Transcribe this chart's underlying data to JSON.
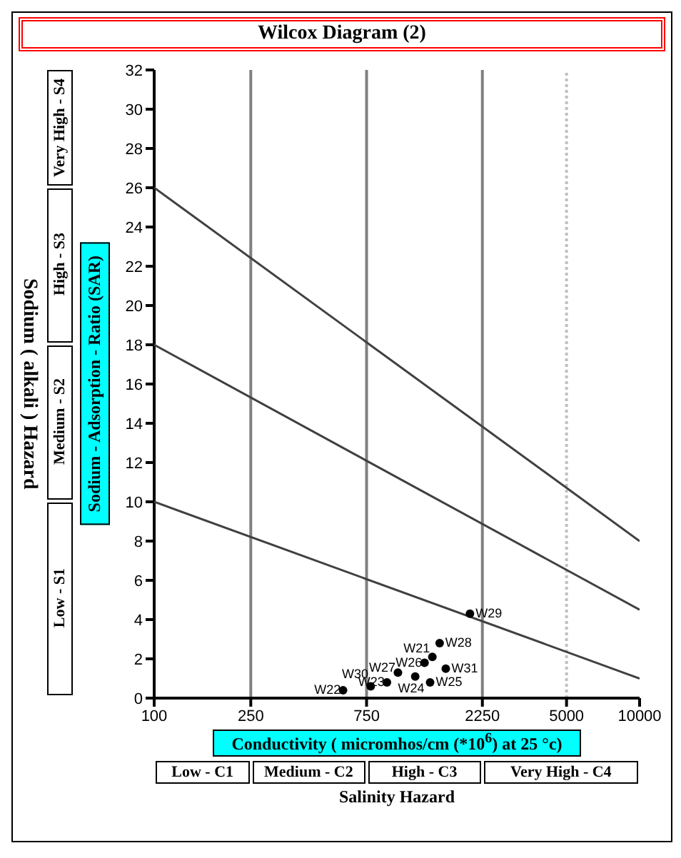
{
  "chart_data": {
    "type": "scatter",
    "title": "Wilcox Diagram (2)",
    "xlabel": "Conductivity ( micromhos/cm (*10$^{6}$) at 25 °c)",
    "ylabel": "Sodium - Adsorption - Ratio (SAR)",
    "annotations": [
      "Low - C1",
      "Medium - C2",
      "High - C3",
      "Very High - C4",
      "Salinity Hazard",
      "Low - S1",
      "Medium - S2",
      "High - S3",
      "Very High - S4",
      "Sodium ( alkali ) Hazard"
    ],
    "log": "x",
    "xlim": [
      100,
      10000
    ],
    "xticks": [
      100,
      250,
      750,
      2250,
      5000,
      10000
    ],
    "ylim": [
      0,
      32
    ],
    "yticks": [
      0,
      2,
      4,
      6,
      8,
      10,
      12,
      14,
      16,
      18,
      20,
      22,
      24,
      26,
      28,
      30,
      32
    ],
    "grid": false,
    "legend": false,
    "marker": "circle",
    "ref_lines": [
      {
        "axis": "x",
        "value": 250,
        "color": "#808080"
      },
      {
        "axis": "x",
        "value": 750,
        "color": "#808080"
      },
      {
        "axis": "x",
        "value": 2250,
        "color": "#808080"
      },
      {
        "axis": "x",
        "value": 5000,
        "color": "#c0c0c0",
        "line_style": "dotted"
      }
    ],
    "series": [
      {
        "type": "line",
        "color": "#404040",
        "marker": "none",
        "x": [
          100,
          10000
        ],
        "values": [
          10,
          1
        ]
      },
      {
        "type": "line",
        "color": "#404040",
        "marker": "none",
        "x": [
          100,
          10000
        ],
        "values": [
          18,
          4.5
        ]
      },
      {
        "type": "line",
        "color": "#404040",
        "marker": "none",
        "x": [
          100,
          10000
        ],
        "values": [
          26,
          8
        ]
      },
      {
        "name": "W22",
        "color": "#000000",
        "x": [
          600
        ],
        "values": [
          0.4
        ]
      },
      {
        "name": "W30",
        "color": "#000000",
        "x": [
          780
        ],
        "values": [
          0.6
        ]
      },
      {
        "name": "W23",
        "color": "#000000",
        "x": [
          910
        ],
        "values": [
          0.8
        ]
      },
      {
        "name": "W27",
        "color": "#000000",
        "x": [
          1010
        ],
        "values": [
          1.3
        ]
      },
      {
        "name": "W24",
        "color": "#000000",
        "x": [
          1190
        ],
        "values": [
          1.1
        ]
      },
      {
        "name": "W26",
        "color": "#000000",
        "x": [
          1300
        ],
        "values": [
          1.8
        ]
      },
      {
        "name": "W25",
        "color": "#000000",
        "x": [
          1370
        ],
        "values": [
          0.8
        ]
      },
      {
        "name": "W21",
        "color": "#000000",
        "x": [
          1400
        ],
        "values": [
          2.1
        ]
      },
      {
        "name": "W28",
        "color": "#000000",
        "x": [
          1500
        ],
        "values": [
          2.8
        ]
      },
      {
        "name": "W31",
        "color": "#000000",
        "x": [
          1590
        ],
        "values": [
          1.5
        ]
      },
      {
        "name": "W29",
        "color": "#000000",
        "x": [
          2000
        ],
        "values": [
          4.3
        ]
      }
    ]
  }
}
